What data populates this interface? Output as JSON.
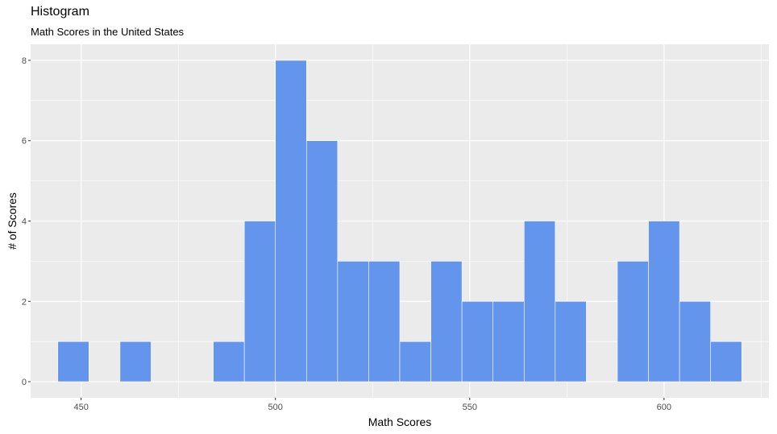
{
  "chart_data": {
    "type": "bar",
    "title": "Histogram",
    "subtitle": "Math Scores in the United States",
    "xlabel": "Math Scores",
    "ylabel": "# of Scores",
    "xlim": [
      437,
      627
    ],
    "ylim": [
      -0.4,
      8.4
    ],
    "x_ticks": [
      450,
      500,
      550,
      600
    ],
    "y_ticks": [
      0,
      2,
      4,
      6,
      8
    ],
    "bin_width": 8,
    "bins": [
      {
        "x": 448,
        "count": 1
      },
      {
        "x": 456,
        "count": 0
      },
      {
        "x": 464,
        "count": 1
      },
      {
        "x": 472,
        "count": 0
      },
      {
        "x": 480,
        "count": 0
      },
      {
        "x": 488,
        "count": 1
      },
      {
        "x": 496,
        "count": 4
      },
      {
        "x": 504,
        "count": 8
      },
      {
        "x": 512,
        "count": 6
      },
      {
        "x": 520,
        "count": 3
      },
      {
        "x": 528,
        "count": 3
      },
      {
        "x": 536,
        "count": 1
      },
      {
        "x": 544,
        "count": 3
      },
      {
        "x": 552,
        "count": 2
      },
      {
        "x": 560,
        "count": 2
      },
      {
        "x": 568,
        "count": 4
      },
      {
        "x": 576,
        "count": 2
      },
      {
        "x": 584,
        "count": 0
      },
      {
        "x": 592,
        "count": 3
      },
      {
        "x": 600,
        "count": 4
      },
      {
        "x": 608,
        "count": 2
      },
      {
        "x": 616,
        "count": 1
      }
    ],
    "bar_color": "#6495ED",
    "bar_outline": "#ffffff",
    "panel_background": "#EBEBEB",
    "grid": true,
    "legend": "none"
  }
}
